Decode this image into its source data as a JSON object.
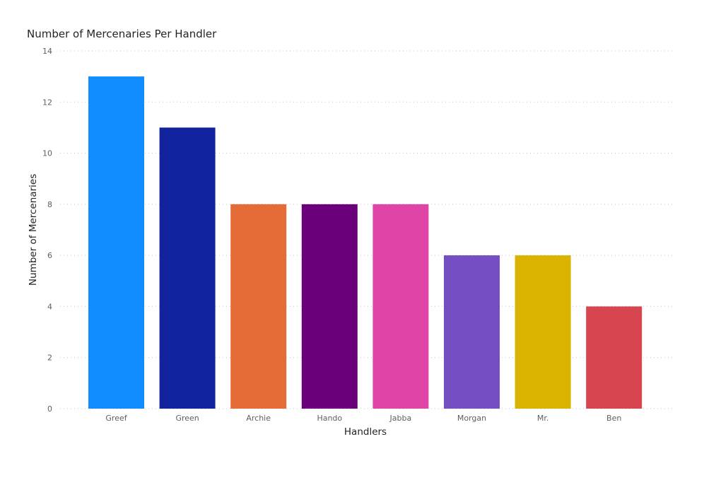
{
  "chart_data": {
    "type": "bar",
    "title": "Number of Mercenaries Per Handler",
    "xlabel": "Handlers",
    "ylabel": "Number of Mercenaries",
    "categories": [
      "Greef",
      "Green",
      "Archie",
      "Hando",
      "Jabba",
      "Morgan",
      "Mr.",
      "Ben"
    ],
    "values": [
      13,
      11,
      8,
      8,
      8,
      6,
      6,
      4
    ],
    "colors": [
      "#118DFF",
      "#12239E",
      "#E66C37",
      "#6B007B",
      "#E044A7",
      "#744EC2",
      "#D9B300",
      "#D64550"
    ],
    "ylim": [
      0,
      14
    ],
    "yticks": [
      0,
      2,
      4,
      6,
      8,
      10,
      12,
      14
    ],
    "grid": true,
    "legend": "none"
  }
}
